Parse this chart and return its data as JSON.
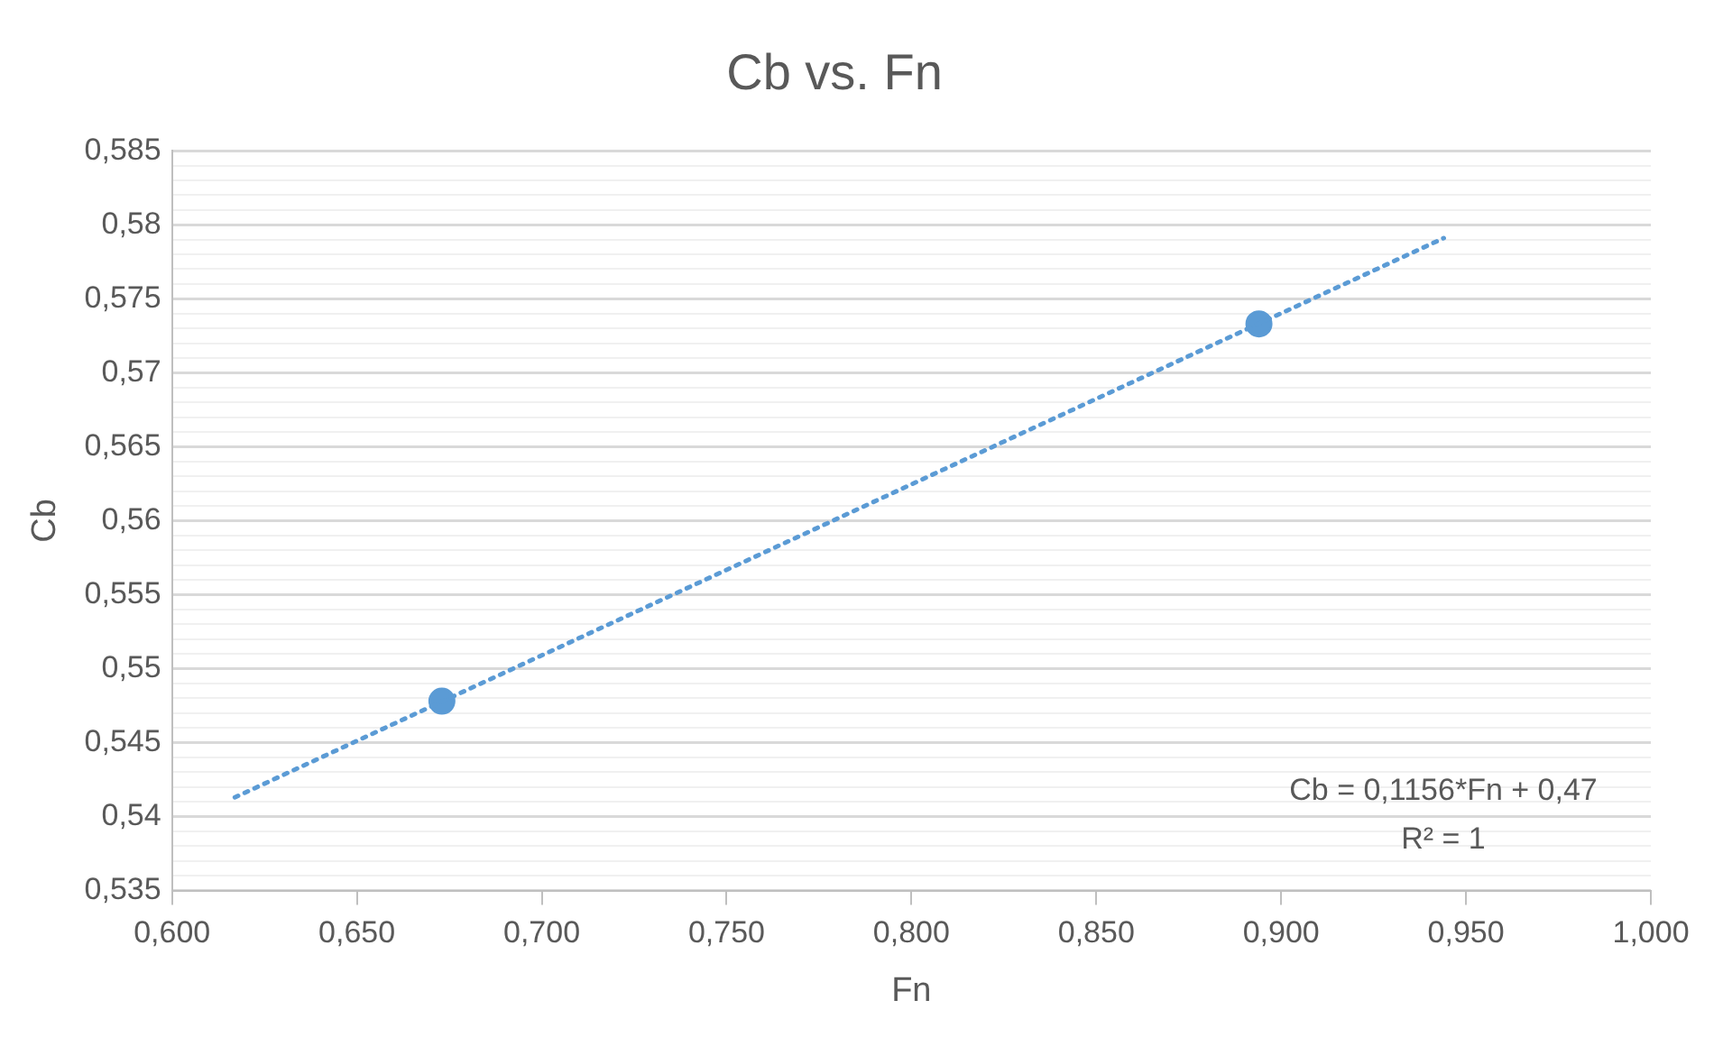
{
  "chart_data": {
    "type": "scatter",
    "title": "Cb vs. Fn",
    "xlabel": "Fn",
    "ylabel": "Cb",
    "xlim": [
      0.6,
      1.0
    ],
    "xticks": [
      {
        "value": 0.6,
        "label": "0,600"
      },
      {
        "value": 0.65,
        "label": "0,650"
      },
      {
        "value": 0.7,
        "label": "0,700"
      },
      {
        "value": 0.75,
        "label": "0,750"
      },
      {
        "value": 0.8,
        "label": "0,800"
      },
      {
        "value": 0.85,
        "label": "0,850"
      },
      {
        "value": 0.9,
        "label": "0,900"
      },
      {
        "value": 0.95,
        "label": "0,950"
      },
      {
        "value": 1.0,
        "label": "1,000"
      }
    ],
    "ylim": [
      0.535,
      0.585
    ],
    "yticks": [
      {
        "value": 0.535,
        "label": "0,535"
      },
      {
        "value": 0.536,
        "label": null
      },
      {
        "value": 0.537,
        "label": null
      },
      {
        "value": 0.538,
        "label": null
      },
      {
        "value": 0.539,
        "label": null
      },
      {
        "value": 0.54,
        "label": "0,54"
      },
      {
        "value": 0.541,
        "label": null
      },
      {
        "value": 0.542,
        "label": null
      },
      {
        "value": 0.543,
        "label": null
      },
      {
        "value": 0.544,
        "label": null
      },
      {
        "value": 0.545,
        "label": "0,545"
      },
      {
        "value": 0.546,
        "label": null
      },
      {
        "value": 0.547,
        "label": null
      },
      {
        "value": 0.548,
        "label": null
      },
      {
        "value": 0.549,
        "label": null
      },
      {
        "value": 0.55,
        "label": "0,55"
      },
      {
        "value": 0.551,
        "label": null
      },
      {
        "value": 0.552,
        "label": null
      },
      {
        "value": 0.553,
        "label": null
      },
      {
        "value": 0.554,
        "label": null
      },
      {
        "value": 0.555,
        "label": "0,555"
      },
      {
        "value": 0.556,
        "label": null
      },
      {
        "value": 0.557,
        "label": null
      },
      {
        "value": 0.558,
        "label": null
      },
      {
        "value": 0.559,
        "label": null
      },
      {
        "value": 0.56,
        "label": "0,56"
      },
      {
        "value": 0.561,
        "label": null
      },
      {
        "value": 0.562,
        "label": null
      },
      {
        "value": 0.563,
        "label": null
      },
      {
        "value": 0.564,
        "label": null
      },
      {
        "value": 0.565,
        "label": "0,565"
      },
      {
        "value": 0.566,
        "label": null
      },
      {
        "value": 0.567,
        "label": null
      },
      {
        "value": 0.568,
        "label": null
      },
      {
        "value": 0.569,
        "label": null
      },
      {
        "value": 0.57,
        "label": "0,57"
      },
      {
        "value": 0.571,
        "label": null
      },
      {
        "value": 0.572,
        "label": null
      },
      {
        "value": 0.573,
        "label": null
      },
      {
        "value": 0.574,
        "label": null
      },
      {
        "value": 0.575,
        "label": "0,575"
      },
      {
        "value": 0.576,
        "label": null
      },
      {
        "value": 0.577,
        "label": null
      },
      {
        "value": 0.578,
        "label": null
      },
      {
        "value": 0.579,
        "label": null
      },
      {
        "value": 0.58,
        "label": "0,58"
      },
      {
        "value": 0.581,
        "label": null
      },
      {
        "value": 0.582,
        "label": null
      },
      {
        "value": 0.583,
        "label": null
      },
      {
        "value": 0.584,
        "label": null
      },
      {
        "value": 0.585,
        "label": "0,585"
      }
    ],
    "grid": "y",
    "legend": false,
    "marker": "circle",
    "series": [
      {
        "type": "scatter",
        "color": "#5b9bd5",
        "x": [
          0.673,
          0.894
        ],
        "values": [
          0.5478,
          0.5733
        ]
      },
      {
        "type": "line",
        "color": "#5b9bd5",
        "line_style": "dotted",
        "marker": "none",
        "x": [
          0.617,
          0.944
        ],
        "values": [
          0.5413,
          0.5791
        ]
      }
    ],
    "annotations": [
      "Cb = 0,1156*Fn + 0,47",
      "R² = 1"
    ]
  }
}
